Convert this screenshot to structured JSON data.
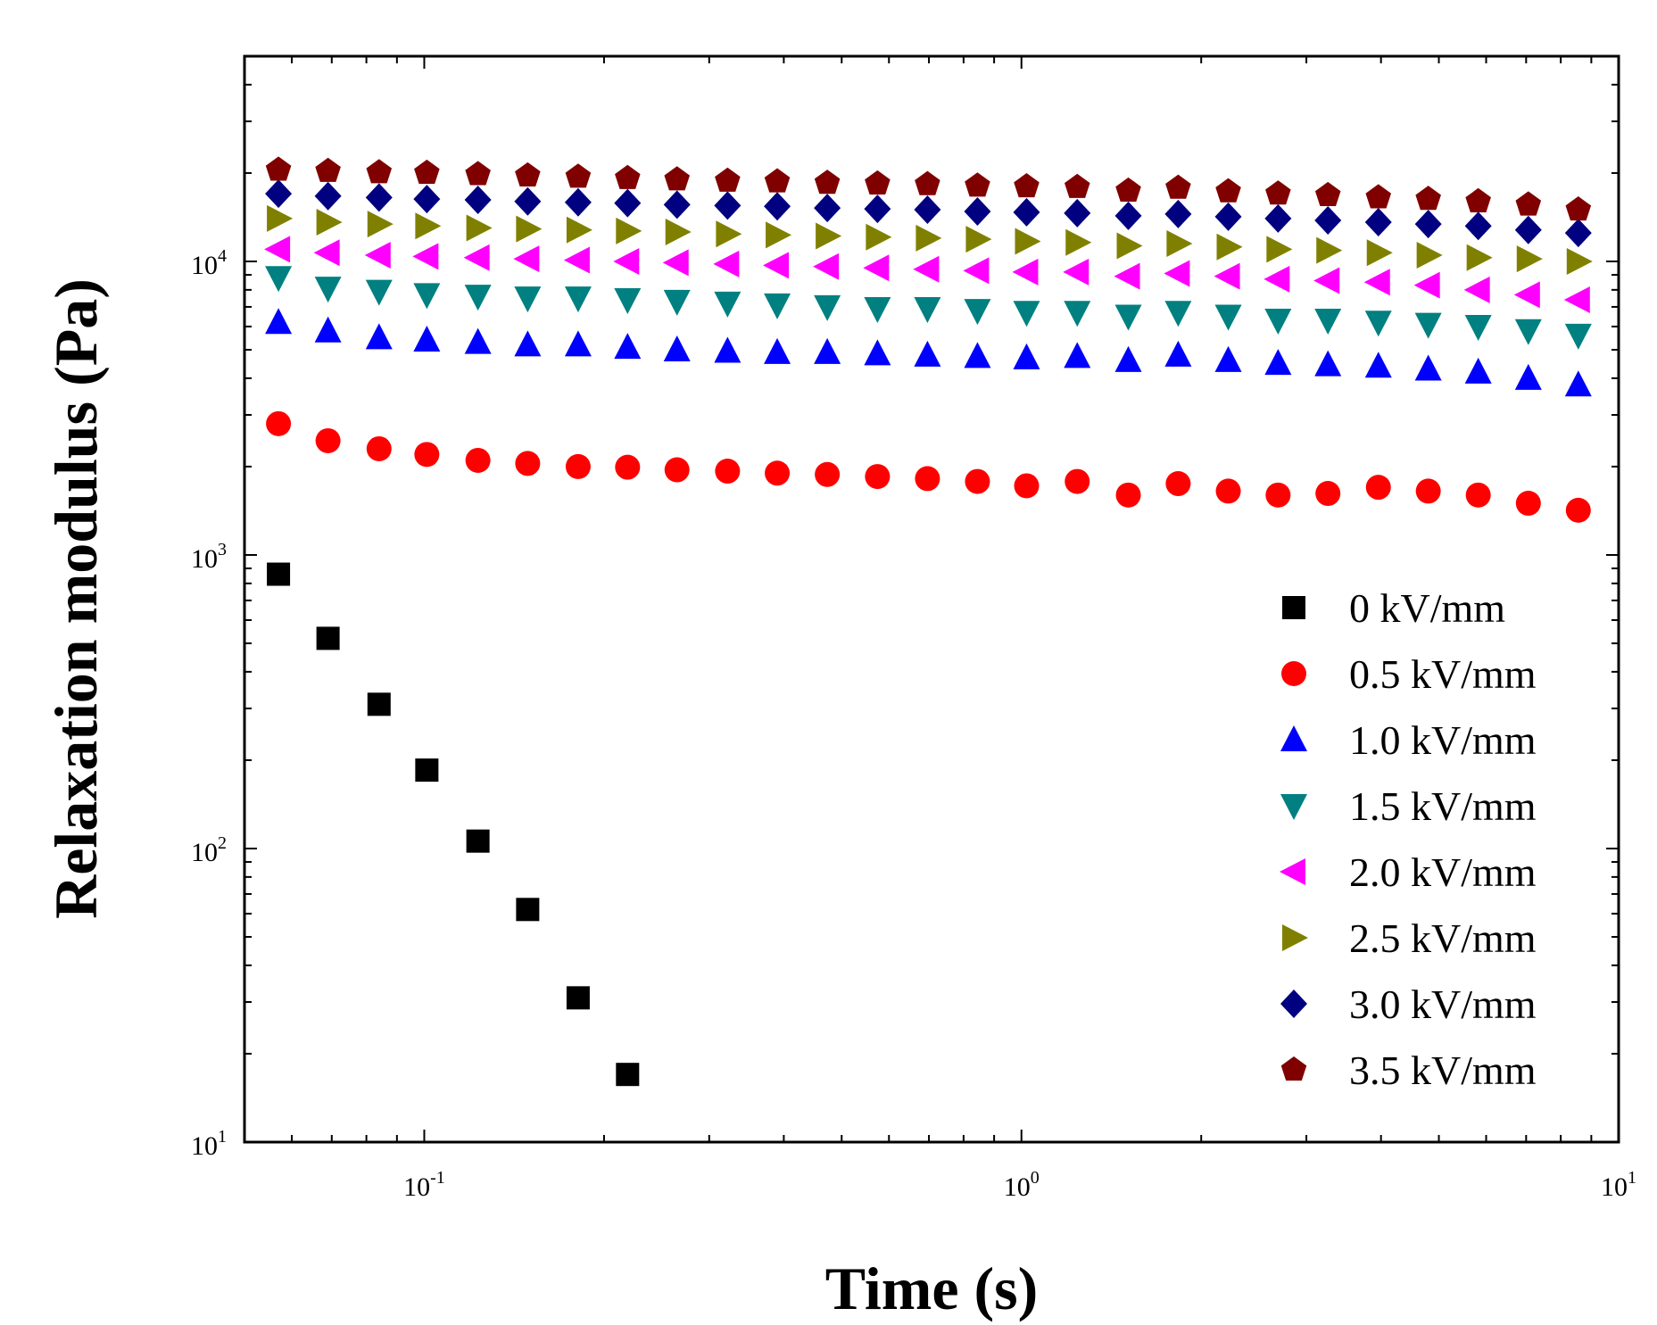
{
  "chart_data": {
    "type": "scatter",
    "x_scale": "log",
    "y_scale": "log",
    "xlabel": "Time (s)",
    "ylabel": "Relaxation modulus (Pa)",
    "xlim": [
      0.05,
      10
    ],
    "ylim": [
      10,
      50000
    ],
    "x_ticks": [
      {
        "value": 0.1,
        "base": "10",
        "exp": "-1"
      },
      {
        "value": 1,
        "base": "10",
        "exp": "0"
      },
      {
        "value": 10,
        "base": "10",
        "exp": "1"
      }
    ],
    "y_ticks": [
      {
        "value": 10,
        "base": "10",
        "exp": "1"
      },
      {
        "value": 100,
        "base": "10",
        "exp": "2"
      },
      {
        "value": 1000,
        "base": "10",
        "exp": "3"
      },
      {
        "value": 10000,
        "base": "10",
        "exp": "4"
      }
    ],
    "legend_position": "right",
    "x": [
      0.057,
      0.069,
      0.084,
      0.101,
      0.123,
      0.149,
      0.181,
      0.219,
      0.265,
      0.322,
      0.39,
      0.473,
      0.574,
      0.696,
      0.844,
      1.02,
      1.24,
      1.51,
      1.83,
      2.22,
      2.69,
      3.26,
      3.96,
      4.8,
      5.82,
      7.06,
      8.56
    ],
    "series": [
      {
        "name": "0 kV/mm",
        "marker": "square",
        "color": "#000000",
        "values": [
          860,
          520,
          310,
          185,
          106,
          62,
          31,
          17
        ]
      },
      {
        "name": "0.5 kV/mm",
        "marker": "circle",
        "color": "#ff0000",
        "values": [
          2800,
          2450,
          2300,
          2200,
          2100,
          2050,
          2000,
          1990,
          1950,
          1930,
          1900,
          1880,
          1850,
          1820,
          1780,
          1720,
          1780,
          1600,
          1750,
          1650,
          1600,
          1620,
          1700,
          1650,
          1600,
          1500,
          1420
        ]
      },
      {
        "name": "1.0 kV/mm",
        "marker": "triangle-up",
        "color": "#0000ff",
        "values": [
          6200,
          5800,
          5500,
          5400,
          5300,
          5200,
          5200,
          5100,
          5000,
          4950,
          4900,
          4900,
          4850,
          4800,
          4750,
          4700,
          4750,
          4600,
          4800,
          4600,
          4500,
          4450,
          4400,
          4300,
          4200,
          4000,
          3800
        ]
      },
      {
        "name": "1.5 kV/mm",
        "marker": "triangle-down",
        "color": "#008080",
        "values": [
          8800,
          8100,
          7900,
          7700,
          7600,
          7500,
          7500,
          7400,
          7300,
          7200,
          7100,
          7000,
          6900,
          6900,
          6800,
          6700,
          6700,
          6500,
          6700,
          6500,
          6300,
          6300,
          6200,
          6100,
          6000,
          5800,
          5600
        ]
      },
      {
        "name": "2.0 kV/mm",
        "marker": "triangle-left",
        "color": "#ff00ff",
        "values": [
          11000,
          10700,
          10500,
          10400,
          10300,
          10200,
          10100,
          10000,
          9900,
          9800,
          9700,
          9600,
          9500,
          9400,
          9300,
          9200,
          9200,
          8900,
          9100,
          8900,
          8700,
          8600,
          8500,
          8300,
          8000,
          7700,
          7400
        ]
      },
      {
        "name": "2.5 kV/mm",
        "marker": "triangle-right",
        "color": "#808000",
        "values": [
          14000,
          13600,
          13400,
          13200,
          13000,
          12900,
          12800,
          12700,
          12600,
          12400,
          12300,
          12200,
          12100,
          12000,
          11900,
          11700,
          11600,
          11300,
          11500,
          11200,
          11000,
          10900,
          10700,
          10500,
          10300,
          10200,
          10000
        ]
      },
      {
        "name": "3.0 kV/mm",
        "marker": "diamond",
        "color": "#000080",
        "values": [
          17000,
          16700,
          16500,
          16300,
          16200,
          16000,
          15900,
          15800,
          15600,
          15500,
          15400,
          15200,
          15100,
          15000,
          14800,
          14700,
          14600,
          14300,
          14500,
          14200,
          14000,
          13800,
          13600,
          13400,
          13200,
          12800,
          12500
        ]
      },
      {
        "name": "3.5 kV/mm",
        "marker": "pentagon",
        "color": "#800000",
        "values": [
          20500,
          20300,
          20100,
          20000,
          19800,
          19600,
          19400,
          19200,
          19000,
          18800,
          18700,
          18500,
          18400,
          18300,
          18100,
          18000,
          17900,
          17400,
          17800,
          17300,
          17000,
          16800,
          16500,
          16300,
          16000,
          15600,
          15000
        ]
      }
    ]
  }
}
